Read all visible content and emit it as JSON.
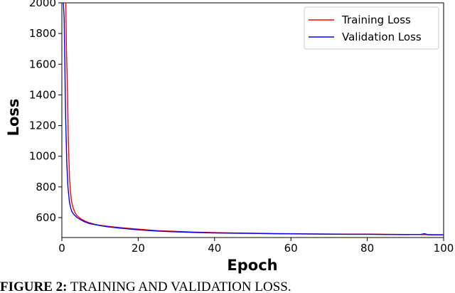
{
  "chart_data": {
    "type": "line",
    "xlabel": "Epoch",
    "ylabel": "Loss",
    "xlim": [
      0,
      100
    ],
    "ylim": [
      470,
      2000
    ],
    "xticks": [
      "0",
      "20",
      "40",
      "60",
      "80",
      "100"
    ],
    "yticks": [
      "600",
      "800",
      "1000",
      "1200",
      "1400",
      "1600",
      "1800",
      "2000"
    ],
    "legend_position": "top-right",
    "grid": false,
    "series": [
      {
        "name": "Training Loss",
        "color": "#ff0000",
        "x": [
          0,
          0.5,
          1,
          1.2,
          1.5,
          1.7,
          2,
          2.3,
          2.5,
          3,
          3.5,
          4,
          5,
          6,
          7,
          8,
          10,
          12,
          15,
          20,
          25,
          30,
          35,
          40,
          45,
          50,
          55,
          60,
          65,
          70,
          75,
          80,
          85,
          90,
          95,
          100
        ],
        "y": [
          2050,
          2050,
          2050,
          1700,
          1400,
          1100,
          860,
          760,
          710,
          660,
          630,
          612,
          592,
          578,
          568,
          560,
          550,
          543,
          535,
          525,
          515,
          510,
          505,
          502,
          500,
          498,
          496,
          495,
          494,
          493,
          492,
          492,
          491,
          490,
          489,
          488
        ]
      },
      {
        "name": "Validation Loss",
        "color": "#0000ff",
        "x": [
          0,
          0.3,
          0.6,
          1,
          1.3,
          1.6,
          2,
          2.3,
          2.6,
          3,
          3.5,
          4,
          5,
          6,
          7,
          8,
          10,
          12,
          15,
          20,
          25,
          30,
          35,
          40,
          45,
          50,
          55,
          60,
          65,
          70,
          75,
          80,
          85,
          90,
          94,
          95,
          96,
          100
        ],
        "y": [
          2050,
          2050,
          1900,
          1250,
          950,
          800,
          700,
          665,
          640,
          625,
          612,
          600,
          585,
          572,
          563,
          557,
          548,
          540,
          532,
          520,
          512,
          507,
          503,
          500,
          498,
          497,
          495,
          494,
          493,
          492,
          491,
          491,
          490,
          489,
          490,
          495,
          488,
          487
        ]
      }
    ]
  },
  "caption": {
    "label": "FIGURE 2:",
    "text": " TRAINING AND VALIDATION LOSS."
  }
}
